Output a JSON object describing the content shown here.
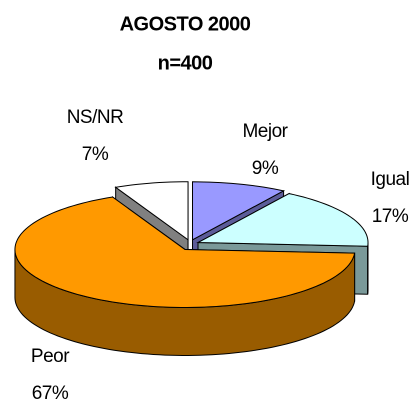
{
  "chart_data": {
    "type": "pie",
    "title": "AGOSTO 2000",
    "subtitle": "n=400",
    "categories": [
      "Mejor",
      "Igual",
      "Peor",
      "NS/NR"
    ],
    "values": [
      9,
      17,
      67,
      7
    ],
    "value_labels": [
      "9%",
      "17%",
      "67%",
      "7%"
    ],
    "colors": [
      "#9999ff",
      "#ccffff",
      "#ff9900",
      "#ffffff"
    ],
    "three_d": true
  }
}
